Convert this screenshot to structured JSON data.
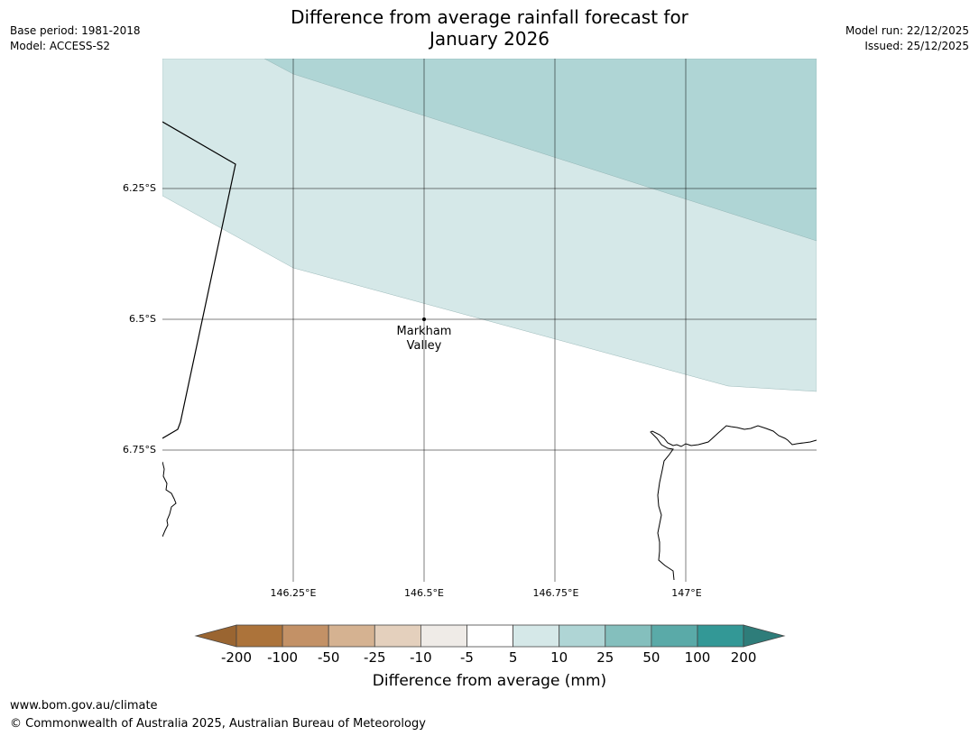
{
  "header": {
    "title_line1": "Difference from average rainfall forecast for",
    "title_line2": "January 2026",
    "base_period": "Base period: 1981-2018",
    "model": "Model: ACCESS-S2",
    "model_run": "Model run: 22/12/2025",
    "issued": "Issued: 25/12/2025"
  },
  "map": {
    "lat_labels": [
      "6.25°S",
      "6.5°S",
      "6.75°S"
    ],
    "lon_labels": [
      "146.25°E",
      "146.5°E",
      "146.75°E",
      "147°E"
    ],
    "town": {
      "name_line1": "Markham",
      "name_line2": "Valley"
    },
    "zones": [
      {
        "category": "10 to 25",
        "color": "#afd5d5"
      },
      {
        "category": "5 to 10",
        "color": "#d5e8e8"
      },
      {
        "category": "-5 to 5",
        "color": "#ffffff"
      }
    ]
  },
  "colorbar": {
    "title": "Difference from average (mm)",
    "ticks": [
      "-200",
      "-100",
      "-50",
      "-25",
      "-10",
      "-5",
      "5",
      "10",
      "25",
      "50",
      "100",
      "200"
    ],
    "under_color": "#9a6531",
    "over_color": "#2e7d7a",
    "bin_colors": [
      "#ac733a",
      "#c39166",
      "#d5b291",
      "#e4d0bd",
      "#efebe7",
      "#ffffff",
      "#d5e8e8",
      "#afd5d5",
      "#84bfbd",
      "#5aaaa8",
      "#339896"
    ]
  },
  "footer": {
    "url": "www.bom.gov.au/climate",
    "copyright": "© Commonwealth of Australia 2025, Australian Bureau of Meteorology"
  }
}
